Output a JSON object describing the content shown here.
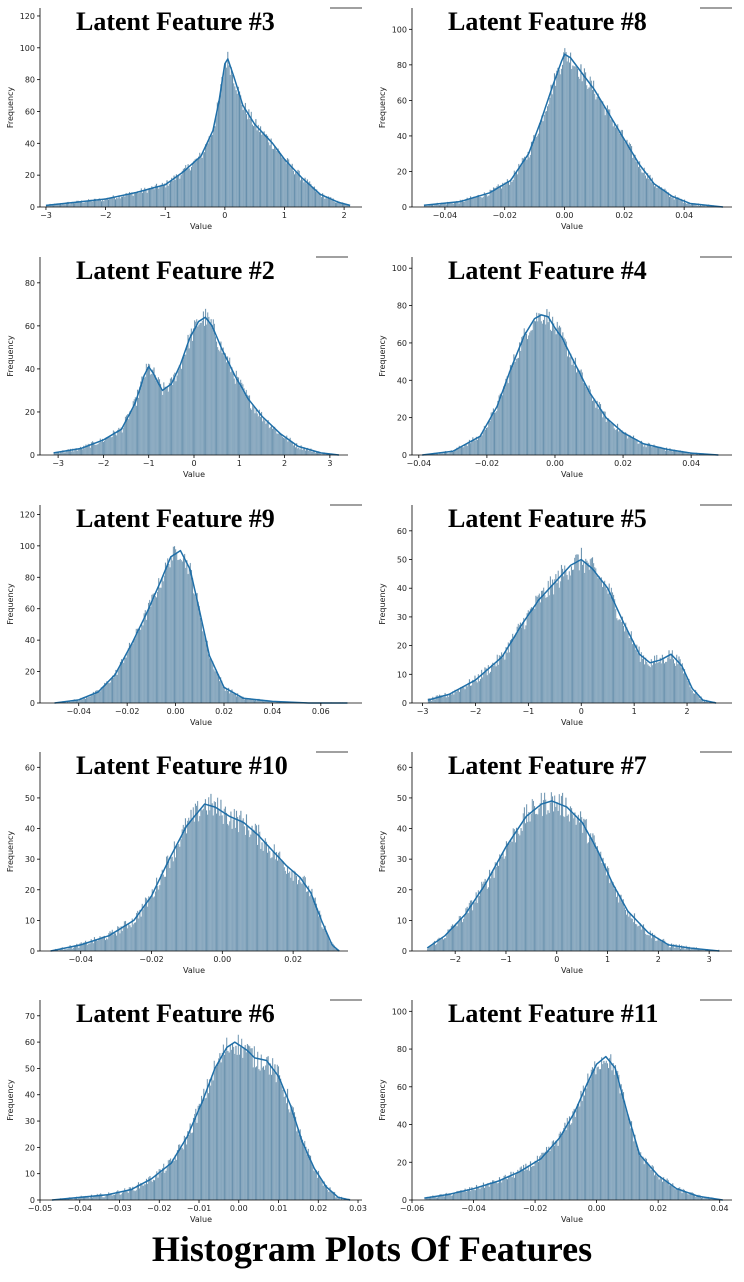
{
  "figure_title": "Histogram Plots Of Features",
  "colors": {
    "bars": "#5b87a6",
    "bar_edge": "#e8eef3",
    "kde": "#1f6fa8",
    "axis": "#000000",
    "tick_text": "#222222"
  },
  "chart_data": [
    {
      "type": "bar",
      "title": "Latent Feature #3",
      "xlabel": "Value",
      "ylabel": "Frequency",
      "xlim": [
        -3.1,
        2.3
      ],
      "ylim": [
        0,
        125
      ],
      "xticks": [
        -3,
        -2,
        -1,
        0,
        1,
        2
      ],
      "xtick_labels": [
        "−3",
        "−2",
        "−1",
        "0",
        "1",
        "2"
      ],
      "yticks": [
        0,
        20,
        40,
        60,
        80,
        100,
        120
      ],
      "ytick_labels": [
        "0",
        "20",
        "40",
        "60",
        "80",
        "100",
        "120"
      ],
      "data_range": [
        -3.0,
        2.1
      ],
      "bar_max": 100,
      "kde": {
        "x": [
          -3.0,
          -2.5,
          -2.0,
          -1.5,
          -1.3,
          -1.0,
          -0.7,
          -0.4,
          -0.2,
          -0.1,
          0.0,
          0.05,
          0.15,
          0.3,
          0.5,
          0.8,
          1.0,
          1.3,
          1.6,
          1.9,
          2.1
        ],
        "y": [
          1,
          3,
          5,
          9,
          11,
          14,
          22,
          32,
          48,
          66,
          90,
          93,
          82,
          64,
          52,
          40,
          30,
          18,
          8,
          3,
          1
        ]
      }
    },
    {
      "type": "bar",
      "title": "Latent Feature #8",
      "xlabel": "Value",
      "ylabel": "Frequency",
      "xlim": [
        -0.051,
        0.056
      ],
      "ylim": [
        0,
        112
      ],
      "xticks": [
        -0.04,
        -0.02,
        0.0,
        0.02,
        0.04
      ],
      "xtick_labels": [
        "−0.04",
        "−0.02",
        "0.00",
        "0.02",
        "0.04"
      ],
      "yticks": [
        0,
        20,
        40,
        60,
        80,
        100
      ],
      "ytick_labels": [
        "0",
        "20",
        "40",
        "60",
        "80",
        "100"
      ],
      "data_range": [
        -0.047,
        0.053
      ],
      "bar_max": 90,
      "kde": {
        "x": [
          -0.047,
          -0.035,
          -0.025,
          -0.018,
          -0.012,
          -0.008,
          -0.004,
          -0.001,
          0.0,
          0.002,
          0.006,
          0.01,
          0.015,
          0.02,
          0.025,
          0.03,
          0.036,
          0.042,
          0.053
        ],
        "y": [
          1,
          3,
          8,
          15,
          30,
          48,
          68,
          82,
          86,
          84,
          75,
          66,
          52,
          38,
          24,
          13,
          6,
          2,
          0
        ]
      }
    },
    {
      "type": "bar",
      "title": "Latent Feature #2",
      "xlabel": "Value",
      "ylabel": "Frequency",
      "xlim": [
        -3.4,
        3.4
      ],
      "ylim": [
        0,
        92
      ],
      "xticks": [
        -3,
        -2,
        -1,
        0,
        1,
        2,
        3
      ],
      "xtick_labels": [
        "−3",
        "−2",
        "−1",
        "0",
        "1",
        "2",
        "3"
      ],
      "yticks": [
        0,
        20,
        40,
        60,
        80
      ],
      "ytick_labels": [
        "0",
        "20",
        "40",
        "60",
        "80"
      ],
      "data_range": [
        -3.1,
        3.2
      ],
      "bar_max": 72,
      "kde": {
        "x": [
          -3.1,
          -2.5,
          -2.0,
          -1.6,
          -1.3,
          -1.1,
          -1.0,
          -0.9,
          -0.7,
          -0.5,
          -0.3,
          -0.1,
          0.1,
          0.25,
          0.4,
          0.6,
          0.9,
          1.2,
          1.5,
          1.9,
          2.3,
          2.8,
          3.2
        ],
        "y": [
          1,
          3,
          7,
          12,
          24,
          37,
          41,
          38,
          30,
          33,
          42,
          54,
          62,
          64,
          60,
          50,
          37,
          26,
          18,
          10,
          4,
          1,
          0
        ]
      }
    },
    {
      "type": "bar",
      "title": "Latent Feature #4",
      "xlabel": "Value",
      "ylabel": "Frequency",
      "xlim": [
        -0.042,
        0.052
      ],
      "ylim": [
        0,
        106
      ],
      "xticks": [
        -0.04,
        -0.02,
        0.0,
        0.02,
        0.04
      ],
      "xtick_labels": [
        "−0.04",
        "−0.02",
        "0.00",
        "0.02",
        "0.04"
      ],
      "yticks": [
        0,
        20,
        40,
        60,
        80,
        100
      ],
      "ytick_labels": [
        "0",
        "20",
        "40",
        "60",
        "80",
        "100"
      ],
      "data_range": [
        -0.039,
        0.048
      ],
      "bar_max": 85,
      "kde": {
        "x": [
          -0.039,
          -0.03,
          -0.022,
          -0.017,
          -0.013,
          -0.009,
          -0.006,
          -0.004,
          -0.002,
          0.0,
          0.002,
          0.005,
          0.01,
          0.015,
          0.02,
          0.026,
          0.033,
          0.04,
          0.048
        ],
        "y": [
          0,
          2,
          10,
          26,
          46,
          64,
          73,
          75,
          74,
          68,
          63,
          52,
          34,
          20,
          12,
          6,
          3,
          1,
          0
        ]
      }
    },
    {
      "type": "bar",
      "title": "Latent Feature #9",
      "xlabel": "Value",
      "ylabel": "Frequency",
      "xlim": [
        -0.056,
        0.077
      ],
      "ylim": [
        0,
        126
      ],
      "xticks": [
        -0.04,
        -0.02,
        0.0,
        0.02,
        0.04,
        0.06
      ],
      "xtick_labels": [
        "−0.04",
        "−0.02",
        "0.00",
        "0.02",
        "0.04",
        "0.06"
      ],
      "yticks": [
        0,
        20,
        40,
        60,
        80,
        100,
        120
      ],
      "ytick_labels": [
        "0",
        "20",
        "40",
        "60",
        "80",
        "100",
        "120"
      ],
      "data_range": [
        -0.05,
        0.071
      ],
      "bar_max": 104,
      "kde": {
        "x": [
          -0.05,
          -0.04,
          -0.032,
          -0.025,
          -0.018,
          -0.012,
          -0.006,
          -0.002,
          0.002,
          0.006,
          0.01,
          0.014,
          0.02,
          0.028,
          0.04,
          0.055,
          0.071
        ],
        "y": [
          0,
          2,
          7,
          18,
          38,
          57,
          78,
          93,
          97,
          85,
          58,
          30,
          10,
          3,
          1,
          0,
          0
        ]
      }
    },
    {
      "type": "bar",
      "title": "Latent Feature #5",
      "xlabel": "Value",
      "ylabel": "Frequency",
      "xlim": [
        -3.2,
        2.85
      ],
      "ylim": [
        0,
        69
      ],
      "xticks": [
        -3,
        -2,
        -1,
        0,
        1,
        2
      ],
      "xtick_labels": [
        "−3",
        "−2",
        "−1",
        "0",
        "1",
        "2"
      ],
      "yticks": [
        0,
        10,
        20,
        30,
        40,
        50,
        60
      ],
      "ytick_labels": [
        "0",
        "10",
        "20",
        "30",
        "40",
        "50",
        "60"
      ],
      "data_range": [
        -2.9,
        2.55
      ],
      "bar_max": 57,
      "kde": {
        "x": [
          -2.9,
          -2.5,
          -2.0,
          -1.5,
          -1.1,
          -0.8,
          -0.5,
          -0.2,
          0.0,
          0.2,
          0.5,
          0.8,
          1.1,
          1.3,
          1.5,
          1.7,
          1.9,
          2.1,
          2.3,
          2.55
        ],
        "y": [
          1,
          3,
          8,
          16,
          28,
          36,
          42,
          48,
          50,
          47,
          40,
          28,
          17,
          14,
          15,
          17,
          13,
          5,
          1,
          0
        ]
      }
    },
    {
      "type": "bar",
      "title": "Latent Feature #10",
      "xlabel": "Value",
      "ylabel": "Frequency",
      "xlim": [
        -0.0515,
        0.0355
      ],
      "ylim": [
        0,
        65
      ],
      "xticks": [
        -0.04,
        -0.02,
        0.0,
        0.02
      ],
      "xtick_labels": [
        "−0.04",
        "−0.02",
        "0.00",
        "0.02"
      ],
      "yticks": [
        0,
        10,
        20,
        30,
        40,
        50,
        60
      ],
      "ytick_labels": [
        "0",
        "10",
        "20",
        "30",
        "40",
        "50",
        "60"
      ],
      "data_range": [
        -0.0485,
        0.033
      ],
      "bar_max": 53,
      "kde": {
        "x": [
          -0.0485,
          -0.04,
          -0.032,
          -0.025,
          -0.02,
          -0.015,
          -0.01,
          -0.005,
          -0.002,
          0.002,
          0.006,
          0.01,
          0.014,
          0.018,
          0.022,
          0.025,
          0.028,
          0.031,
          0.033
        ],
        "y": [
          0,
          2,
          5,
          10,
          18,
          30,
          41,
          48,
          47,
          44,
          42,
          38,
          33,
          28,
          24,
          19,
          10,
          2,
          0
        ]
      }
    },
    {
      "type": "bar",
      "title": "Latent Feature #7",
      "xlabel": "Value",
      "ylabel": "Frequency",
      "xlim": [
        -2.85,
        3.45
      ],
      "ylim": [
        0,
        65
      ],
      "xticks": [
        -2,
        -1,
        0,
        1,
        2,
        3
      ],
      "xtick_labels": [
        "−2",
        "−1",
        "0",
        "1",
        "2",
        "3"
      ],
      "yticks": [
        0,
        10,
        20,
        30,
        40,
        50,
        60
      ],
      "ytick_labels": [
        "0",
        "10",
        "20",
        "30",
        "40",
        "50",
        "60"
      ],
      "data_range": [
        -2.55,
        3.2
      ],
      "bar_max": 53,
      "kde": {
        "x": [
          -2.55,
          -2.2,
          -1.8,
          -1.4,
          -1.0,
          -0.6,
          -0.3,
          -0.1,
          0.2,
          0.5,
          0.8,
          1.1,
          1.4,
          1.8,
          2.2,
          2.6,
          3.2
        ],
        "y": [
          1,
          5,
          12,
          22,
          34,
          44,
          48,
          49,
          47,
          42,
          33,
          22,
          13,
          6,
          2,
          1,
          0
        ]
      }
    },
    {
      "type": "bar",
      "title": "Latent Feature #6",
      "xlabel": "Value",
      "ylabel": "Frequency",
      "xlim": [
        -0.05,
        0.031
      ],
      "ylim": [
        0,
        76
      ],
      "xticks": [
        -0.05,
        -0.04,
        -0.03,
        -0.02,
        -0.01,
        0.0,
        0.01,
        0.02,
        0.03
      ],
      "xtick_labels": [
        "−0.05",
        "−0.04",
        "−0.03",
        "−0.02",
        "−0.01",
        "0.00",
        "0.01",
        "0.02",
        "0.03"
      ],
      "yticks": [
        0,
        10,
        20,
        30,
        40,
        50,
        60,
        70
      ],
      "ytick_labels": [
        "0",
        "10",
        "20",
        "30",
        "40",
        "50",
        "60",
        "70"
      ],
      "data_range": [
        -0.047,
        0.028
      ],
      "bar_max": 63,
      "kde": {
        "x": [
          -0.047,
          -0.04,
          -0.033,
          -0.027,
          -0.022,
          -0.017,
          -0.013,
          -0.009,
          -0.006,
          -0.003,
          -0.001,
          0.002,
          0.004,
          0.007,
          0.01,
          0.013,
          0.016,
          0.019,
          0.022,
          0.025,
          0.028
        ],
        "y": [
          0,
          1,
          2,
          4,
          8,
          14,
          24,
          38,
          50,
          58,
          60,
          57,
          54,
          53,
          47,
          36,
          22,
          12,
          5,
          1,
          0
        ]
      }
    },
    {
      "type": "bar",
      "title": "Latent Feature #11",
      "xlabel": "Value",
      "ylabel": "Frequency",
      "xlim": [
        -0.06,
        0.044
      ],
      "ylim": [
        0,
        106
      ],
      "xticks": [
        -0.06,
        -0.04,
        -0.02,
        0.0,
        0.02,
        0.04
      ],
      "xtick_labels": [
        "−0.06",
        "−0.04",
        "−0.02",
        "0.00",
        "0.02",
        "0.04"
      ],
      "yticks": [
        0,
        20,
        40,
        60,
        80,
        100
      ],
      "ytick_labels": [
        "0",
        "20",
        "40",
        "60",
        "80",
        "100"
      ],
      "data_range": [
        -0.056,
        0.041
      ],
      "bar_max": 88,
      "kde": {
        "x": [
          -0.056,
          -0.048,
          -0.04,
          -0.032,
          -0.025,
          -0.018,
          -0.012,
          -0.007,
          -0.003,
          0.0,
          0.003,
          0.006,
          0.01,
          0.014,
          0.02,
          0.026,
          0.033,
          0.041
        ],
        "y": [
          1,
          3,
          6,
          10,
          15,
          22,
          33,
          47,
          62,
          72,
          76,
          70,
          46,
          24,
          13,
          6,
          2,
          0
        ]
      }
    }
  ]
}
